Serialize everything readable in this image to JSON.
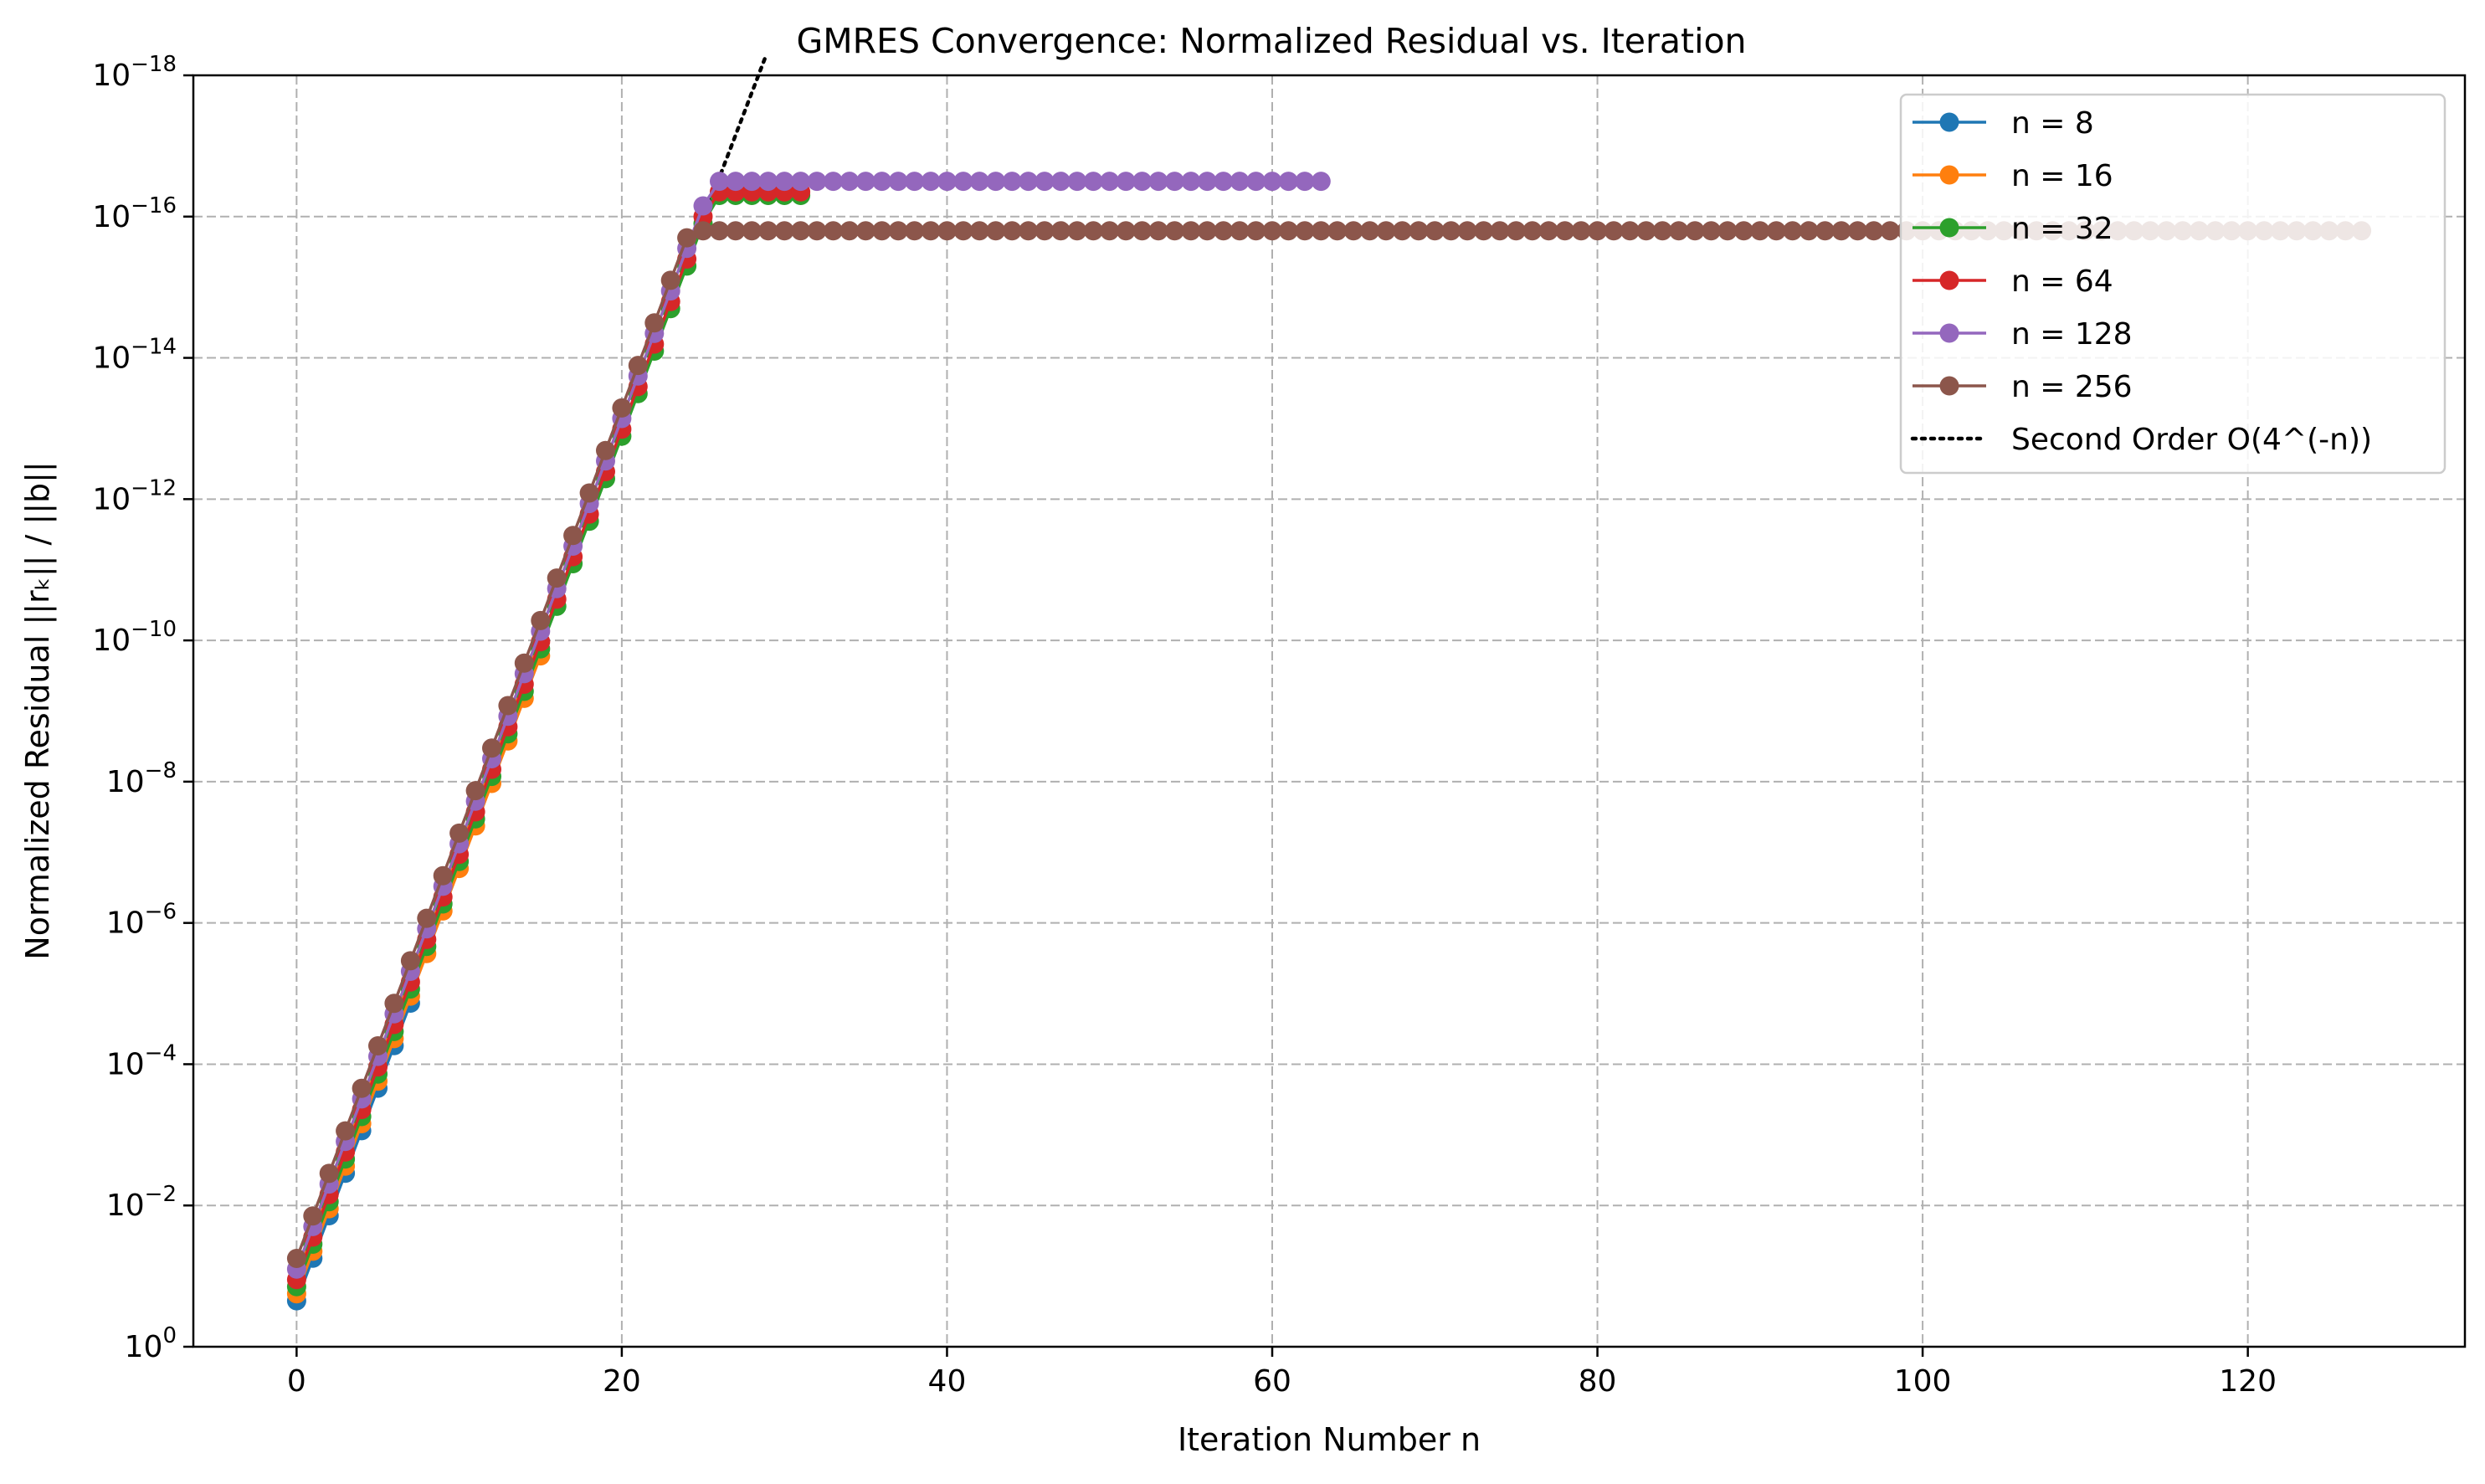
{
  "chart_data": {
    "type": "line",
    "title": "GMRES Convergence: Normalized Residual vs. Iteration",
    "xlabel": "Iteration Number n",
    "ylabel": "Normalized Residual ||rₖ|| / ||b||",
    "y_scale": "log",
    "xlim": [
      -6.35,
      133.35
    ],
    "ylim_exponent": [
      -18,
      0
    ],
    "x_ticks": [
      0,
      20,
      40,
      60,
      80,
      100,
      120
    ],
    "y_tick_exponents": [
      0,
      -2,
      -4,
      -6,
      -8,
      -10,
      -12,
      -14,
      -16,
      -18
    ],
    "grid": true,
    "legend_position": "top-right",
    "series": [
      {
        "name": "n = 8",
        "color": "#1f77b4",
        "iterations": 8,
        "start_exponent": -0.65,
        "plateau_exponent": -16.3
      },
      {
        "name": "n = 16",
        "color": "#ff7f0e",
        "iterations": 16,
        "start_exponent": -0.75,
        "plateau_exponent": -16.3
      },
      {
        "name": "n = 32",
        "color": "#2ca02c",
        "iterations": 32,
        "start_exponent": -0.85,
        "plateau_exponent": -16.3
      },
      {
        "name": "n = 64",
        "color": "#d62728",
        "iterations": 32,
        "start_exponent": -0.95,
        "plateau_exponent": -16.35
      },
      {
        "name": "n = 128",
        "color": "#9467bd",
        "iterations": 64,
        "start_exponent": -1.1,
        "plateau_exponent": -16.5
      },
      {
        "name": "n = 256",
        "color": "#8c564b",
        "iterations": 128,
        "start_exponent": -1.25,
        "plateau_exponent": -15.8
      }
    ],
    "reference": {
      "name": "Second Order O(4^(-n))",
      "color": "#000000",
      "style": "dotted",
      "log10_start": -0.9,
      "log10_ratio": -0.60206,
      "x_max": 28.9
    }
  }
}
